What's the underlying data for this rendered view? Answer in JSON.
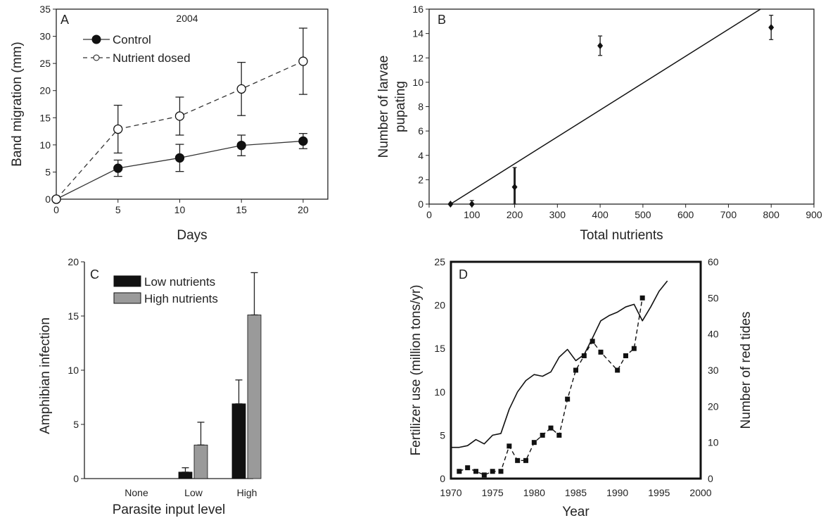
{
  "figure": {
    "panels": [
      {
        "id": "A",
        "label": "A",
        "chart_data": {
          "type": "line",
          "title": "2004",
          "xlabel": "Days",
          "ylabel": "Band migration (mm)",
          "xlim": [
            0,
            22
          ],
          "ylim": [
            0,
            35
          ],
          "xticks": [
            "0",
            "5",
            "10",
            "15",
            "20"
          ],
          "yticks": [
            "0",
            "5",
            "10",
            "15",
            "20",
            "25",
            "30",
            "35"
          ],
          "legend_position": "top-left",
          "series": [
            {
              "name": "Control",
              "style": "solid",
              "marker": "filled-circle",
              "x": [
                0,
                5,
                10,
                15,
                20
              ],
              "y": [
                0,
                5.7,
                7.6,
                9.9,
                10.7
              ],
              "err": [
                0,
                1.5,
                2.5,
                1.9,
                1.4
              ]
            },
            {
              "name": "Nutrient dosed",
              "style": "dashed",
              "marker": "open-circle",
              "x": [
                0,
                5,
                10,
                15,
                20
              ],
              "y": [
                0,
                12.9,
                15.3,
                20.3,
                25.4
              ],
              "err": [
                0,
                4.4,
                3.5,
                4.9,
                6.1
              ]
            }
          ]
        }
      },
      {
        "id": "B",
        "label": "B",
        "chart_data": {
          "type": "scatter",
          "xlabel": "Total nutrients",
          "ylabel": "Number of larvae pupating",
          "xlim": [
            0,
            900
          ],
          "ylim": [
            0,
            16
          ],
          "xticks": [
            "0",
            "100",
            "200",
            "300",
            "400",
            "500",
            "600",
            "700",
            "800",
            "900"
          ],
          "yticks": [
            "0",
            "2",
            "4",
            "6",
            "8",
            "10",
            "12",
            "14",
            "16"
          ],
          "series": [
            {
              "name": "",
              "x": [
                50,
                100,
                200,
                400,
                800
              ],
              "y": [
                0,
                0,
                1.4,
                13,
                14.5
              ],
              "err": [
                0,
                0.3,
                1.6,
                0.8,
                1.0
              ]
            }
          ],
          "fit_line": {
            "x": [
              50,
              775
            ],
            "y": [
              0,
              16
            ]
          }
        }
      },
      {
        "id": "C",
        "label": "C",
        "chart_data": {
          "type": "bar",
          "xlabel": "Parasite input level",
          "ylabel": "Amphibian infection",
          "ylim": [
            0,
            20
          ],
          "yticks": [
            "0",
            "5",
            "10",
            "15",
            "20"
          ],
          "categories": [
            "None",
            "Low",
            "High"
          ],
          "legend_position": "top-left",
          "series": [
            {
              "name": "Low nutrients",
              "color": "#111111",
              "values": [
                0,
                0.6,
                6.9
              ],
              "err": [
                0,
                0.4,
                2.2
              ]
            },
            {
              "name": "High nutrients",
              "color": "#9a9a9a",
              "values": [
                0,
                3.1,
                15.1
              ],
              "err": [
                0,
                2.1,
                3.9
              ]
            }
          ]
        }
      },
      {
        "id": "D",
        "label": "D",
        "chart_data": {
          "type": "line",
          "xlabel": "Year",
          "ylabel": "Fertilizer use (million tons/yr)",
          "ylabel_right": "Number of red tides",
          "xlim": [
            1970,
            2000
          ],
          "ylim": [
            0,
            25
          ],
          "ylim_right": [
            0,
            60
          ],
          "xticks": [
            "1970",
            "1975",
            "1980",
            "1985",
            "1990",
            "1995",
            "2000"
          ],
          "yticks": [
            "0",
            "5",
            "10",
            "15",
            "20",
            "25"
          ],
          "yticks_right": [
            "0",
            "10",
            "20",
            "30",
            "40",
            "50",
            "60"
          ],
          "series": [
            {
              "name": "",
              "axis": "left",
              "style": "solid",
              "x": [
                1970,
                1971,
                1972,
                1973,
                1974,
                1975,
                1976,
                1977,
                1978,
                1979,
                1980,
                1981,
                1982,
                1983,
                1984,
                1985,
                1986,
                1987,
                1988,
                1989,
                1990,
                1991,
                1992,
                1993,
                1994,
                1995,
                1996
              ],
              "y": [
                3.6,
                3.6,
                3.8,
                4.5,
                4.0,
                5.0,
                5.2,
                8.0,
                10.0,
                11.3,
                12.0,
                11.8,
                12.3,
                14.0,
                14.9,
                13.6,
                14.3,
                16.2,
                18.2,
                18.8,
                19.2,
                19.8,
                20.1,
                18.2,
                19.8,
                21.6,
                22.8
              ]
            },
            {
              "name": "",
              "axis": "right",
              "style": "dashed",
              "marker": "filled-square",
              "x": [
                1971,
                1972,
                1973,
                1974,
                1975,
                1976,
                1977,
                1978,
                1979,
                1980,
                1981,
                1982,
                1983,
                1984,
                1985,
                1986,
                1987,
                1988,
                1990,
                1991,
                1992,
                1993
              ],
              "y": [
                2,
                3,
                2,
                1,
                2,
                2,
                9,
                5,
                5,
                10,
                12,
                14,
                12,
                22,
                30,
                34,
                38,
                35,
                30,
                34,
                36,
                50
              ]
            }
          ]
        }
      }
    ]
  }
}
